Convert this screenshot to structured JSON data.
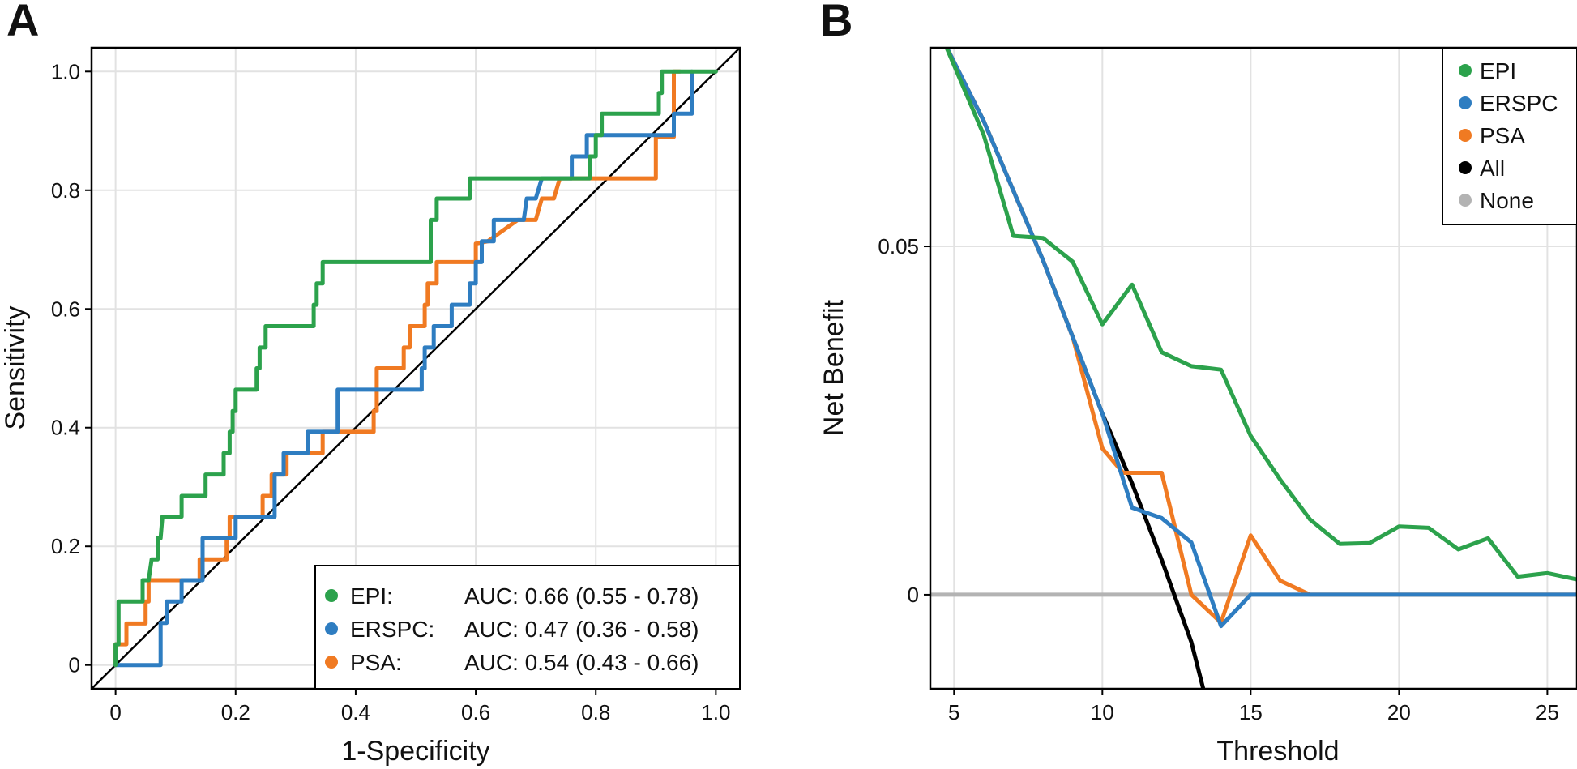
{
  "panels": {
    "a": "A",
    "b": "B"
  },
  "chart_data": [
    {
      "type": "line",
      "panel": "A",
      "xlabel": "1-Specificity",
      "ylabel": "Sensitivity",
      "xlim": [
        -0.04,
        1.04
      ],
      "ylim": [
        -0.04,
        1.04
      ],
      "xticks": [
        0,
        0.2,
        0.4,
        0.6,
        0.8,
        1.0
      ],
      "xtick_labels": [
        "0",
        "0.2",
        "0.4",
        "0.6",
        "0.8",
        "1.0"
      ],
      "yticks": [
        0,
        0.2,
        0.4,
        0.6,
        0.8,
        1.0
      ],
      "ytick_labels": [
        "0",
        "0.2",
        "0.4",
        "0.6",
        "0.8",
        "1.0"
      ],
      "grid": true,
      "diagonal": {
        "color": "#000000"
      },
      "legend": {
        "placement": "bottom-right",
        "entries": [
          {
            "name": "EPI:",
            "auc": "AUC: 0.66 (0.55 - 0.78)",
            "color": "#2ca24c"
          },
          {
            "name": "ERSPC:",
            "auc": "AUC: 0.47 (0.36 - 0.58)",
            "color": "#2e7dc1"
          },
          {
            "name": "PSA:",
            "auc": "AUC: 0.54 (0.43 - 0.66)",
            "color": "#f07a22"
          }
        ]
      },
      "series": [
        {
          "key": "psa",
          "color": "#f07a22",
          "points": [
            [
              0,
              0
            ],
            [
              0,
              0.035
            ],
            [
              0.018,
              0.035
            ],
            [
              0.018,
              0.07
            ],
            [
              0.05,
              0.07
            ],
            [
              0.05,
              0.107
            ],
            [
              0.055,
              0.107
            ],
            [
              0.055,
              0.143
            ],
            [
              0.14,
              0.143
            ],
            [
              0.14,
              0.178
            ],
            [
              0.185,
              0.178
            ],
            [
              0.185,
              0.214
            ],
            [
              0.19,
              0.214
            ],
            [
              0.19,
              0.25
            ],
            [
              0.24,
              0.25
            ],
            [
              0.24,
              0.25
            ],
            [
              0.245,
              0.25
            ],
            [
              0.245,
              0.285
            ],
            [
              0.26,
              0.285
            ],
            [
              0.26,
              0.321
            ],
            [
              0.285,
              0.321
            ],
            [
              0.285,
              0.357
            ],
            [
              0.345,
              0.357
            ],
            [
              0.345,
              0.393
            ],
            [
              0.43,
              0.393
            ],
            [
              0.43,
              0.428
            ],
            [
              0.435,
              0.428
            ],
            [
              0.435,
              0.5
            ],
            [
              0.48,
              0.5
            ],
            [
              0.48,
              0.535
            ],
            [
              0.49,
              0.535
            ],
            [
              0.49,
              0.571
            ],
            [
              0.515,
              0.571
            ],
            [
              0.515,
              0.607
            ],
            [
              0.52,
              0.607
            ],
            [
              0.52,
              0.643
            ],
            [
              0.535,
              0.643
            ],
            [
              0.535,
              0.679
            ],
            [
              0.6,
              0.679
            ],
            [
              0.6,
              0.71
            ],
            [
              0.62,
              0.714
            ],
            [
              0.67,
              0.75
            ],
            [
              0.7,
              0.75
            ],
            [
              0.71,
              0.786
            ],
            [
              0.73,
              0.786
            ],
            [
              0.74,
              0.82
            ],
            [
              0.9,
              0.82
            ],
            [
              0.9,
              0.89
            ],
            [
              0.93,
              0.89
            ],
            [
              0.93,
              1.0
            ],
            [
              0.94,
              1.0
            ]
          ]
        },
        {
          "key": "erspc",
          "color": "#2e7dc1",
          "points": [
            [
              0,
              0
            ],
            [
              0.075,
              0
            ],
            [
              0.075,
              0.071
            ],
            [
              0.085,
              0.071
            ],
            [
              0.085,
              0.107
            ],
            [
              0.11,
              0.107
            ],
            [
              0.11,
              0.143
            ],
            [
              0.145,
              0.143
            ],
            [
              0.145,
              0.214
            ],
            [
              0.2,
              0.214
            ],
            [
              0.2,
              0.25
            ],
            [
              0.265,
              0.25
            ],
            [
              0.265,
              0.321
            ],
            [
              0.28,
              0.321
            ],
            [
              0.28,
              0.357
            ],
            [
              0.32,
              0.357
            ],
            [
              0.32,
              0.393
            ],
            [
              0.37,
              0.393
            ],
            [
              0.37,
              0.464
            ],
            [
              0.51,
              0.464
            ],
            [
              0.51,
              0.5
            ],
            [
              0.515,
              0.5
            ],
            [
              0.515,
              0.535
            ],
            [
              0.53,
              0.535
            ],
            [
              0.53,
              0.571
            ],
            [
              0.56,
              0.571
            ],
            [
              0.56,
              0.607
            ],
            [
              0.59,
              0.607
            ],
            [
              0.59,
              0.643
            ],
            [
              0.6,
              0.643
            ],
            [
              0.6,
              0.679
            ],
            [
              0.61,
              0.679
            ],
            [
              0.61,
              0.714
            ],
            [
              0.63,
              0.714
            ],
            [
              0.63,
              0.75
            ],
            [
              0.68,
              0.75
            ],
            [
              0.685,
              0.786
            ],
            [
              0.7,
              0.786
            ],
            [
              0.71,
              0.82
            ],
            [
              0.76,
              0.82
            ],
            [
              0.76,
              0.857
            ],
            [
              0.785,
              0.857
            ],
            [
              0.785,
              0.893
            ],
            [
              0.93,
              0.893
            ],
            [
              0.93,
              0.929
            ],
            [
              0.96,
              0.929
            ],
            [
              0.96,
              1.0
            ]
          ]
        },
        {
          "key": "epi",
          "color": "#2ca24c",
          "points": [
            [
              0,
              0
            ],
            [
              0,
              0.035
            ],
            [
              0.005,
              0.035
            ],
            [
              0.005,
              0.107
            ],
            [
              0.045,
              0.107
            ],
            [
              0.045,
              0.143
            ],
            [
              0.055,
              0.143
            ],
            [
              0.06,
              0.178
            ],
            [
              0.07,
              0.178
            ],
            [
              0.07,
              0.214
            ],
            [
              0.075,
              0.214
            ],
            [
              0.078,
              0.25
            ],
            [
              0.11,
              0.25
            ],
            [
              0.11,
              0.285
            ],
            [
              0.15,
              0.285
            ],
            [
              0.15,
              0.321
            ],
            [
              0.18,
              0.321
            ],
            [
              0.18,
              0.357
            ],
            [
              0.19,
              0.357
            ],
            [
              0.19,
              0.393
            ],
            [
              0.195,
              0.393
            ],
            [
              0.195,
              0.428
            ],
            [
              0.2,
              0.428
            ],
            [
              0.2,
              0.464
            ],
            [
              0.235,
              0.464
            ],
            [
              0.235,
              0.5
            ],
            [
              0.24,
              0.5
            ],
            [
              0.24,
              0.535
            ],
            [
              0.25,
              0.535
            ],
            [
              0.25,
              0.571
            ],
            [
              0.33,
              0.571
            ],
            [
              0.33,
              0.607
            ],
            [
              0.335,
              0.607
            ],
            [
              0.335,
              0.643
            ],
            [
              0.345,
              0.643
            ],
            [
              0.345,
              0.679
            ],
            [
              0.525,
              0.679
            ],
            [
              0.525,
              0.75
            ],
            [
              0.535,
              0.75
            ],
            [
              0.535,
              0.786
            ],
            [
              0.545,
              0.786
            ],
            [
              0.545,
              0.786
            ],
            [
              0.59,
              0.786
            ],
            [
              0.59,
              0.82
            ],
            [
              0.79,
              0.82
            ],
            [
              0.79,
              0.857
            ],
            [
              0.8,
              0.857
            ],
            [
              0.8,
              0.893
            ],
            [
              0.81,
              0.893
            ],
            [
              0.81,
              0.929
            ],
            [
              0.905,
              0.929
            ],
            [
              0.905,
              0.964
            ],
            [
              0.91,
              0.964
            ],
            [
              0.91,
              1.0
            ],
            [
              1.0,
              1.0
            ]
          ]
        }
      ]
    },
    {
      "type": "line",
      "panel": "B",
      "xlabel": "Threshold",
      "ylabel": "Net Benefit",
      "xlim": [
        4.2,
        26
      ],
      "ylim": [
        -0.0135,
        0.0785
      ],
      "xticks": [
        5,
        10,
        15,
        20,
        25
      ],
      "xtick_labels": [
        "5",
        "10",
        "15",
        "20",
        "25"
      ],
      "yticks": [
        0,
        0.05
      ],
      "ytick_labels": [
        "0",
        "0.05"
      ],
      "grid": true,
      "legend": {
        "placement": "top-right",
        "entries": [
          {
            "name": "EPI",
            "color": "#2ca24c"
          },
          {
            "name": "ERSPC",
            "color": "#2e7dc1"
          },
          {
            "name": "PSA",
            "color": "#f07a22"
          },
          {
            "name": "All",
            "color": "#000000"
          },
          {
            "name": "None",
            "color": "#b3b3b3"
          }
        ]
      },
      "series": [
        {
          "key": "none",
          "color": "#b3b3b3",
          "points": [
            [
              4.2,
              0
            ],
            [
              26,
              0
            ]
          ]
        },
        {
          "key": "all",
          "color": "#000000",
          "points": [
            [
              4.7,
              0.079
            ],
            [
              6,
              0.068
            ],
            [
              8,
              0.048
            ],
            [
              10,
              0.026
            ],
            [
              11,
              0.016
            ],
            [
              12,
              0.005
            ],
            [
              13,
              -0.0068
            ],
            [
              13.4,
              -0.0135
            ]
          ]
        },
        {
          "key": "psa",
          "color": "#f07a22",
          "points": [
            [
              4.7,
              0.079
            ],
            [
              6,
              0.068
            ],
            [
              8,
              0.048
            ],
            [
              9,
              0.037
            ],
            [
              10,
              0.021
            ],
            [
              10.7,
              0.0175
            ],
            [
              12,
              0.0175
            ],
            [
              13,
              0
            ],
            [
              14,
              -0.004
            ],
            [
              15,
              0.0085
            ],
            [
              16,
              0.002
            ],
            [
              17,
              0
            ],
            [
              26,
              0
            ]
          ]
        },
        {
          "key": "erspc",
          "color": "#2e7dc1",
          "points": [
            [
              4.7,
              0.079
            ],
            [
              6,
              0.068
            ],
            [
              8,
              0.048
            ],
            [
              10,
              0.026
            ],
            [
              11,
              0.0125
            ],
            [
              12,
              0.011
            ],
            [
              13,
              0.0075
            ],
            [
              14,
              -0.0045
            ],
            [
              15,
              0
            ],
            [
              26,
              0
            ]
          ]
        },
        {
          "key": "epi",
          "color": "#2ca24c",
          "points": [
            [
              4.7,
              0.079
            ],
            [
              6,
              0.066
            ],
            [
              7,
              0.0515
            ],
            [
              8,
              0.0512
            ],
            [
              9,
              0.0478
            ],
            [
              10,
              0.0388
            ],
            [
              11,
              0.0445
            ],
            [
              12,
              0.0348
            ],
            [
              13,
              0.0328
            ],
            [
              14,
              0.0323
            ],
            [
              15,
              0.0228
            ],
            [
              16,
              0.0165
            ],
            [
              17,
              0.0108
            ],
            [
              18,
              0.0073
            ],
            [
              19,
              0.0074
            ],
            [
              20,
              0.0098
            ],
            [
              21,
              0.0096
            ],
            [
              22,
              0.0065
            ],
            [
              23,
              0.0081
            ],
            [
              24,
              0.0026
            ],
            [
              25,
              0.0031
            ],
            [
              26,
              0.0022
            ]
          ]
        }
      ]
    }
  ]
}
